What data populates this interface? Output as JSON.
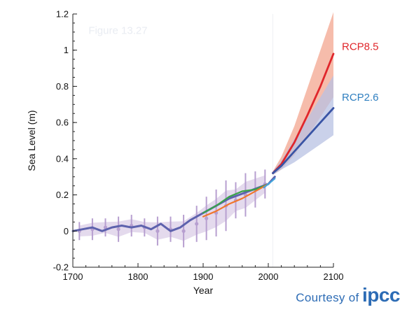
{
  "chart_data": {
    "type": "line",
    "xlabel": "Year",
    "ylabel": "Sea Level (m)",
    "xlim": [
      1700,
      2100
    ],
    "ylim": [
      -0.2,
      1.2
    ],
    "xticks": [
      "1700",
      "1800",
      "1900",
      "2000",
      "2100"
    ],
    "yticks": [
      "-0.2",
      "0",
      "0.2",
      "0.4",
      "0.6",
      "0.8",
      "1",
      "1.2"
    ],
    "grid": false,
    "watermark": "Figure 13.27",
    "series": [
      {
        "name": "RCP8.5",
        "color": "#e0262b",
        "band_color": "#f3a58f",
        "x": [
          2007,
          2020,
          2040,
          2060,
          2080,
          2100
        ],
        "y": [
          0.32,
          0.37,
          0.49,
          0.64,
          0.8,
          0.98
        ],
        "lower": [
          0.31,
          0.34,
          0.42,
          0.52,
          0.63,
          0.74
        ],
        "upper": [
          0.33,
          0.41,
          0.58,
          0.79,
          1.0,
          1.21
        ]
      },
      {
        "name": "RCP2.6",
        "color": "#3954a5",
        "band_color": "#b8c1e3",
        "x": [
          2007,
          2020,
          2040,
          2060,
          2080,
          2100
        ],
        "y": [
          0.32,
          0.36,
          0.44,
          0.52,
          0.6,
          0.68
        ],
        "lower": [
          0.31,
          0.34,
          0.38,
          0.43,
          0.48,
          0.53
        ],
        "upper": [
          0.33,
          0.39,
          0.51,
          0.62,
          0.74,
          0.86
        ]
      },
      {
        "name": "",
        "color": "#5d62ad",
        "x": [
          1700,
          1715,
          1730,
          1745,
          1760,
          1775,
          1790,
          1805,
          1820,
          1835,
          1850,
          1865,
          1880,
          1895,
          1910,
          1925,
          1940,
          1955,
          1970,
          1985,
          2000,
          2010
        ],
        "y": [
          0.0,
          0.01,
          0.02,
          0.0,
          0.02,
          0.03,
          0.02,
          0.03,
          0.01,
          0.04,
          0.0,
          0.02,
          0.06,
          0.09,
          0.12,
          0.15,
          0.18,
          0.2,
          0.22,
          0.24,
          0.26,
          0.3
        ]
      },
      {
        "name": "",
        "color": "#3aa34a",
        "x": [
          1900,
          1920,
          1940,
          1960,
          1980,
          2000
        ],
        "y": [
          0.1,
          0.14,
          0.19,
          0.22,
          0.23,
          0.26
        ]
      },
      {
        "name": "",
        "color": "#f0762d",
        "x": [
          1900,
          1920,
          1940,
          1960,
          1980,
          2000
        ],
        "y": [
          0.08,
          0.11,
          0.15,
          0.18,
          0.22,
          0.26
        ]
      },
      {
        "name": "",
        "color": "#42a4dc",
        "x": [
          1993,
          2000,
          2010
        ],
        "y": [
          0.24,
          0.26,
          0.29
        ]
      }
    ],
    "reconstruction": {
      "color": "#b79fd0",
      "band_color": "#d9cbe6",
      "x": [
        1710,
        1730,
        1750,
        1770,
        1790,
        1810,
        1830,
        1850,
        1870,
        1890,
        1905,
        1920,
        1935,
        1950,
        1965,
        1980,
        1995
      ],
      "y": [
        0.0,
        0.01,
        0.02,
        0.01,
        0.03,
        0.02,
        0.0,
        0.01,
        0.0,
        0.04,
        0.07,
        0.1,
        0.14,
        0.17,
        0.2,
        0.23,
        0.26
      ],
      "err": [
        0.05,
        0.06,
        0.05,
        0.07,
        0.06,
        0.05,
        0.08,
        0.07,
        0.09,
        0.1,
        0.12,
        0.13,
        0.14,
        0.1,
        0.12,
        0.1,
        0.08
      ]
    },
    "labels": [
      {
        "text": "RCP8.5",
        "color": "#e0262b"
      },
      {
        "text": "RCP2.6",
        "color": "#2f7fc0"
      }
    ]
  },
  "credit": {
    "text": "Courtesy of",
    "logo": "ipcc"
  }
}
